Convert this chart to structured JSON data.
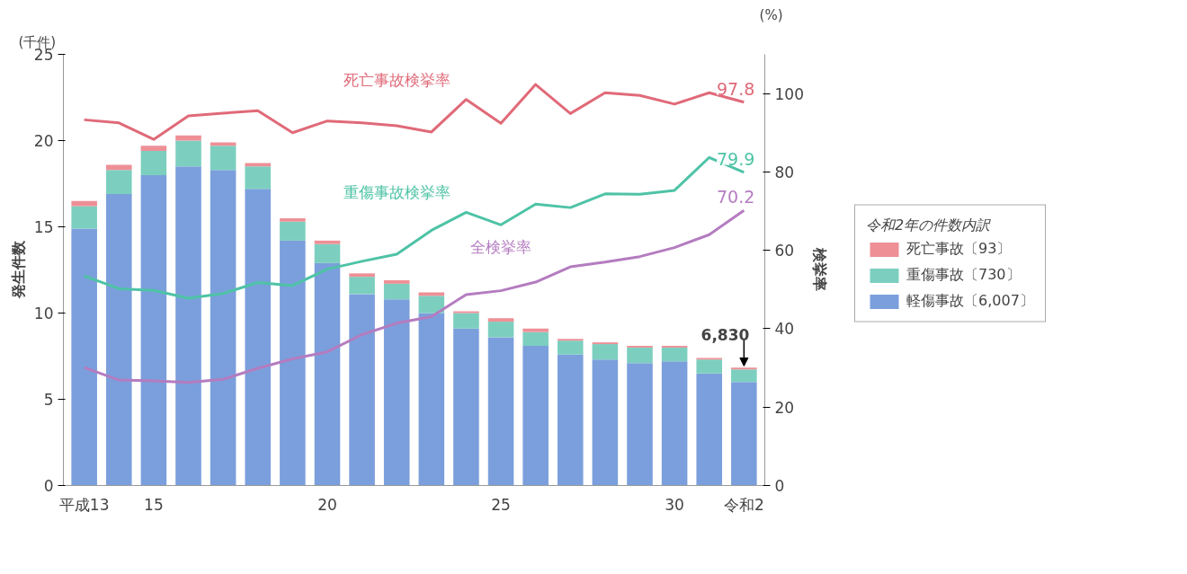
{
  "chart_data": {
    "type": "bar",
    "stacked": true,
    "categories": [
      "平成13",
      null,
      "15",
      null,
      null,
      null,
      null,
      "20",
      null,
      null,
      null,
      null,
      "25",
      null,
      null,
      null,
      null,
      "30",
      null,
      "令和2"
    ],
    "series": [
      {
        "name": "軽傷事故〔6,007〕",
        "color": "#7b9fdc",
        "values": [
          14.9,
          16.9,
          18.0,
          18.5,
          18.3,
          17.2,
          14.2,
          12.9,
          11.1,
          10.8,
          10.0,
          9.1,
          8.6,
          8.1,
          7.6,
          7.3,
          7.1,
          7.2,
          6.5,
          6.007
        ]
      },
      {
        "name": "重傷事故〔730〕",
        "color": "#7ccfbf",
        "values": [
          1.3,
          1.4,
          1.4,
          1.5,
          1.4,
          1.3,
          1.1,
          1.1,
          1.0,
          0.9,
          1.0,
          0.9,
          0.9,
          0.8,
          0.8,
          0.9,
          0.9,
          0.8,
          0.8,
          0.73
        ]
      },
      {
        "name": "死亡事故〔93〕",
        "color": "#ee8f96",
        "values": [
          0.3,
          0.3,
          0.3,
          0.3,
          0.2,
          0.2,
          0.2,
          0.2,
          0.2,
          0.2,
          0.2,
          0.1,
          0.2,
          0.2,
          0.1,
          0.1,
          0.1,
          0.1,
          0.1,
          0.093
        ]
      },
      {
        "name": "死亡事故検挙率",
        "type": "line",
        "axis": "y2",
        "color": "#e06a78",
        "values": [
          93.3,
          92.5,
          88.3,
          94.3,
          95.0,
          95.6,
          90.0,
          93.0,
          92.5,
          91.8,
          90.2,
          98.5,
          92.4,
          102.3,
          94.9,
          100.2,
          99.5,
          97.3,
          100.2,
          97.8
        ],
        "value_labels": [
          null,
          null,
          null,
          null,
          null,
          null,
          null,
          null,
          null,
          null,
          null,
          null,
          null,
          null,
          null,
          null,
          null,
          null,
          null,
          "97.8"
        ]
      },
      {
        "name": "重傷事故検挙率",
        "type": "line",
        "axis": "y2",
        "color": "#4ec3a6",
        "values": [
          53.5,
          50.2,
          49.8,
          47.8,
          49.0,
          51.8,
          51.0,
          55.2,
          57.2,
          59.0,
          65.1,
          69.7,
          66.5,
          71.8,
          70.9,
          74.4,
          74.3,
          75.3,
          83.7,
          79.9
        ],
        "value_labels": [
          null,
          null,
          null,
          null,
          null,
          null,
          null,
          null,
          null,
          null,
          null,
          null,
          null,
          null,
          null,
          null,
          null,
          null,
          null,
          "79.9"
        ]
      },
      {
        "name": "全検挙率",
        "type": "line",
        "axis": "y2",
        "color": "#b47cc0",
        "values": [
          30.1,
          26.9,
          26.7,
          26.3,
          27.1,
          29.9,
          32.3,
          34.1,
          38.5,
          41.4,
          43.1,
          48.7,
          49.7,
          51.9,
          55.8,
          57.0,
          58.4,
          60.7,
          64.0,
          70.2
        ],
        "value_labels": [
          null,
          null,
          null,
          null,
          null,
          null,
          null,
          null,
          null,
          null,
          null,
          null,
          null,
          null,
          null,
          null,
          null,
          null,
          null,
          "70.2"
        ]
      }
    ],
    "ylabel": "発生件数",
    "y2label": "検挙率",
    "ylim": [
      0,
      25
    ],
    "yticks": [
      0,
      5,
      10,
      15,
      20,
      25
    ],
    "y2lim": [
      0,
      110
    ],
    "y2ticks": [
      0,
      20,
      40,
      60,
      80,
      100
    ],
    "legend": "right",
    "legend_title": "令和2年の件数内訳",
    "grid": false,
    "marker": "none",
    "line_style": "solid",
    "annotations": [
      "(千件)",
      "(%)",
      {
        "text": "6,830",
        "x": "令和2",
        "y": 6.83
      }
    ]
  }
}
